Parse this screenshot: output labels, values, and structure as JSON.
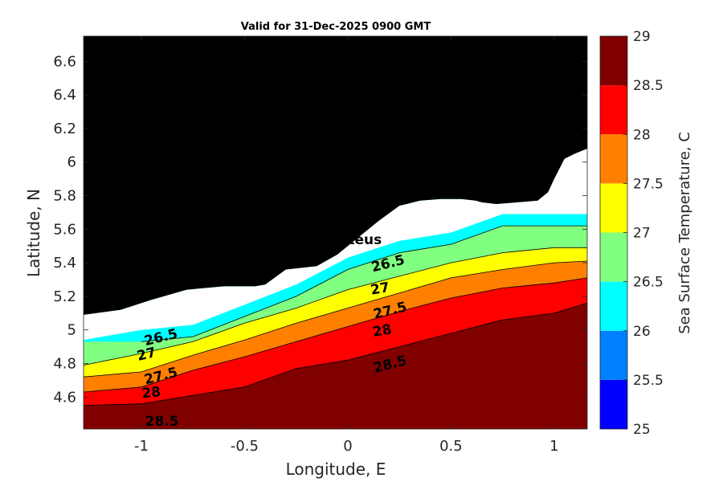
{
  "chart_data": {
    "type": "contourf",
    "title": "Valid for 31-Dec-2025 0900 GMT",
    "xlabel": "Longitude, E",
    "ylabel": "Latitude, N",
    "xlim": [
      -1.28,
      1.16
    ],
    "ylim": [
      4.41,
      6.75
    ],
    "xticks": [
      -1,
      -0.5,
      0,
      0.5,
      1
    ],
    "xtick_labels": [
      "-1",
      "-0.5",
      "0",
      "0.5",
      "1"
    ],
    "yticks": [
      4.6,
      4.8,
      5,
      5.2,
      5.4,
      5.6,
      5.8,
      6,
      6.2,
      6.4,
      6.6
    ],
    "ytick_labels": [
      "4.6",
      "4.8",
      "5",
      "5.2",
      "5.4",
      "5.6",
      "5.8",
      "6",
      "6.2",
      "6.4",
      "6.6"
    ],
    "colorbar": {
      "label": "Sea Surface Temperature, C",
      "range": [
        25,
        29
      ],
      "ticks": [
        25,
        25.5,
        26,
        26.5,
        27,
        27.5,
        28,
        28.5,
        29
      ],
      "tick_labels": [
        "25",
        "25.5",
        "26",
        "26.5",
        "27",
        "27.5",
        "28",
        "28.5",
        "29"
      ],
      "bands": [
        {
          "from": 25.0,
          "to": 25.5,
          "color": "#0000ff"
        },
        {
          "from": 25.5,
          "to": 26.0,
          "color": "#0080ff"
        },
        {
          "from": 26.0,
          "to": 26.5,
          "color": "#00ffff"
        },
        {
          "from": 26.5,
          "to": 27.0,
          "color": "#80ff80"
        },
        {
          "from": 27.0,
          "to": 27.5,
          "color": "#ffff00"
        },
        {
          "from": 27.5,
          "to": 28.0,
          "color": "#ff8000"
        },
        {
          "from": 28.0,
          "to": 28.5,
          "color": "#ff0000"
        },
        {
          "from": 28.5,
          "to": 29.0,
          "color": "#800000"
        }
      ]
    },
    "land_color": "#000000",
    "nodata_color": "#ffffff",
    "isolines": [
      {
        "level": 26.5,
        "label": "26.5",
        "points": [
          [
            -1.0,
            4.93
          ],
          [
            -0.75,
            4.96
          ],
          [
            -0.5,
            5.08
          ],
          [
            -0.25,
            5.2
          ],
          [
            0.0,
            5.36
          ],
          [
            0.25,
            5.46
          ],
          [
            0.5,
            5.51
          ],
          [
            0.75,
            5.62
          ],
          [
            1.0,
            5.62
          ],
          [
            1.16,
            5.62
          ]
        ]
      },
      {
        "level": 27.0,
        "label": "27",
        "points": [
          [
            -1.28,
            4.79
          ],
          [
            -1.0,
            4.86
          ],
          [
            -0.75,
            4.93
          ],
          [
            -0.5,
            5.04
          ],
          [
            -0.25,
            5.13
          ],
          [
            0.0,
            5.24
          ],
          [
            0.25,
            5.32
          ],
          [
            0.5,
            5.4
          ],
          [
            0.75,
            5.46
          ],
          [
            1.0,
            5.49
          ],
          [
            1.16,
            5.49
          ]
        ]
      },
      {
        "level": 27.5,
        "label": "27.5",
        "points": [
          [
            -1.28,
            4.72
          ],
          [
            -1.0,
            4.75
          ],
          [
            -0.75,
            4.85
          ],
          [
            -0.5,
            4.94
          ],
          [
            -0.25,
            5.04
          ],
          [
            0.0,
            5.13
          ],
          [
            0.25,
            5.22
          ],
          [
            0.5,
            5.31
          ],
          [
            0.75,
            5.36
          ],
          [
            1.0,
            5.4
          ],
          [
            1.16,
            5.41
          ]
        ]
      },
      {
        "level": 28.0,
        "label": "28",
        "points": [
          [
            -1.28,
            4.63
          ],
          [
            -1.0,
            4.66
          ],
          [
            -0.75,
            4.76
          ],
          [
            -0.5,
            4.84
          ],
          [
            -0.25,
            4.93
          ],
          [
            0.0,
            5.02
          ],
          [
            0.25,
            5.11
          ],
          [
            0.5,
            5.19
          ],
          [
            0.75,
            5.25
          ],
          [
            1.0,
            5.28
          ],
          [
            1.16,
            5.31
          ]
        ]
      },
      {
        "level": 28.5,
        "label": "28.5",
        "points": [
          [
            -1.28,
            4.55
          ],
          [
            -1.0,
            4.56
          ],
          [
            -0.75,
            4.61
          ],
          [
            -0.5,
            4.66
          ],
          [
            -0.25,
            4.77
          ],
          [
            0.0,
            4.82
          ],
          [
            0.25,
            4.9
          ],
          [
            0.5,
            4.98
          ],
          [
            0.75,
            5.06
          ],
          [
            1.0,
            5.1
          ],
          [
            1.16,
            5.16
          ]
        ]
      }
    ],
    "contour_labels": [
      {
        "text": "26.5",
        "lon": -0.9,
        "lat": 4.93,
        "angle": -14
      },
      {
        "text": "27",
        "lon": -0.97,
        "lat": 4.83,
        "angle": -14
      },
      {
        "text": "27.5",
        "lon": -0.9,
        "lat": 4.7,
        "angle": -14
      },
      {
        "text": "28",
        "lon": -0.95,
        "lat": 4.6,
        "angle": -6
      },
      {
        "text": "28.5",
        "lon": -0.9,
        "lat": 4.43,
        "angle": 0
      },
      {
        "text": "26.5",
        "lon": 0.2,
        "lat": 5.37,
        "angle": -14
      },
      {
        "text": "27",
        "lon": 0.16,
        "lat": 5.22,
        "angle": -10
      },
      {
        "text": "27.5",
        "lon": 0.21,
        "lat": 5.09,
        "angle": -14
      },
      {
        "text": "28",
        "lon": 0.17,
        "lat": 4.97,
        "angle": -10
      },
      {
        "text": "28.5",
        "lon": 0.21,
        "lat": 4.77,
        "angle": -14
      }
    ],
    "marker": {
      "name": "Proteus",
      "lon": 0.02,
      "lat": 5.63,
      "symbol": "☆"
    },
    "land_outline": [
      [
        -1.28,
        5.09
      ],
      [
        -1.1,
        5.12
      ],
      [
        -0.95,
        5.18
      ],
      [
        -0.78,
        5.24
      ],
      [
        -0.6,
        5.26
      ],
      [
        -0.45,
        5.26
      ],
      [
        -0.4,
        5.27
      ],
      [
        -0.3,
        5.36
      ],
      [
        -0.15,
        5.38
      ],
      [
        -0.05,
        5.45
      ],
      [
        0.0,
        5.5
      ],
      [
        0.05,
        5.55
      ],
      [
        0.15,
        5.65
      ],
      [
        0.25,
        5.74
      ],
      [
        0.35,
        5.77
      ],
      [
        0.45,
        5.78
      ],
      [
        0.55,
        5.78
      ],
      [
        0.62,
        5.77
      ],
      [
        0.65,
        5.76
      ],
      [
        0.72,
        5.75
      ],
      [
        0.82,
        5.76
      ],
      [
        0.92,
        5.77
      ],
      [
        0.97,
        5.82
      ],
      [
        1.0,
        5.9
      ],
      [
        1.05,
        6.02
      ],
      [
        1.1,
        6.05
      ],
      [
        1.16,
        6.08
      ]
    ]
  }
}
